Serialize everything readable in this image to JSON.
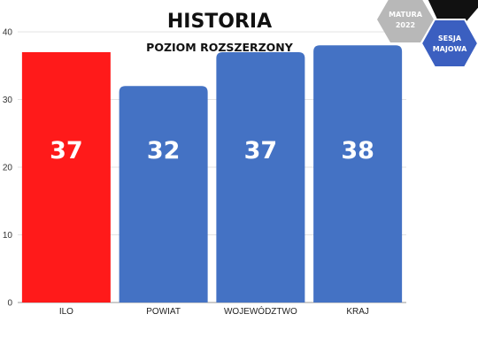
{
  "chart_data": {
    "type": "bar",
    "title": "HISTORIA",
    "subtitle": "POZIOM ROZSZERZONY",
    "categories": [
      "ILO",
      "POWIAT",
      "WOJEWÓDZTWO",
      "KRAJ"
    ],
    "values": [
      37,
      32,
      37,
      38
    ],
    "value_labels": [
      "37",
      "32",
      "37",
      "38"
    ],
    "bar_colors": [
      "#ff1a1a",
      "#4472c4",
      "#4472c4",
      "#4472c4"
    ],
    "ylim": [
      0,
      40
    ],
    "yticks": [
      0,
      10,
      20,
      30,
      40
    ],
    "grid": true,
    "xlabel": "",
    "ylabel": ""
  },
  "badges": {
    "matura_line1": "MATURA",
    "matura_line2": "2022",
    "matura_color": "#b8b8b8",
    "sesja_line1": "SESJA",
    "sesja_line2": "MAJOWA",
    "sesja_color": "#3b5fc0",
    "dark_color": "#111111"
  }
}
